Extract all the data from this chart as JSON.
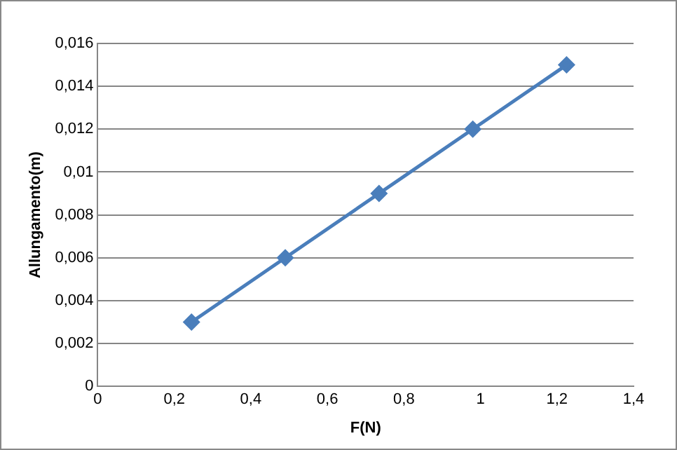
{
  "chart_data": {
    "type": "line",
    "xlabel": "F(N)",
    "ylabel": "Allungamento(m)",
    "x": [
      0.245,
      0.49,
      0.735,
      0.98,
      1.225
    ],
    "series": [
      {
        "color": "#4a7ebb",
        "values": [
          0.003,
          0.006,
          0.009,
          0.012,
          0.015
        ]
      }
    ],
    "xlim": [
      0,
      1.4
    ],
    "xticks": [
      0,
      {
        "value": 0.2,
        "label": "0,2"
      },
      {
        "value": 0.4,
        "label": "0,4"
      },
      {
        "value": 0.6,
        "label": "0,6"
      },
      {
        "value": 0.8,
        "label": "0,8"
      },
      1,
      {
        "value": 1.2,
        "label": "1,2"
      },
      {
        "value": 1.4,
        "label": "1,4"
      }
    ],
    "ylim": [
      0,
      0.016
    ],
    "yticks": [
      0,
      {
        "value": 0.002,
        "label": "0,002"
      },
      {
        "value": 0.004,
        "label": "0,004"
      },
      {
        "value": 0.006,
        "label": "0,006"
      },
      {
        "value": 0.008,
        "label": "0,008"
      },
      {
        "value": 0.01,
        "label": "0,01"
      },
      {
        "value": 0.012,
        "label": "0,012"
      },
      {
        "value": 0.014,
        "label": "0,014"
      },
      {
        "value": 0.016,
        "label": "0,016"
      }
    ],
    "grid": "y",
    "legend": false,
    "marker": "diamond",
    "line_style": "solid"
  }
}
